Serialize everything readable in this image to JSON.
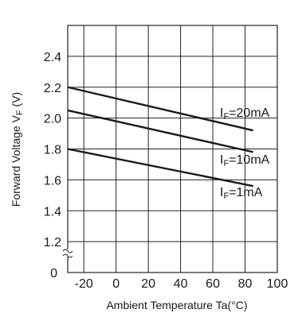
{
  "chart_data": {
    "type": "line",
    "title": "",
    "xlabel": "Ambient Temperature  Ta(°C)",
    "ylabel_main": "Forward Voltage  V",
    "ylabel_sub": "F",
    "ylabel_unit": " (V)",
    "xlim": [
      -30,
      100
    ],
    "ylim": [
      1.0,
      2.6
    ],
    "y_axis_broken": true,
    "grid": true,
    "x_ticks": [
      {
        "value": -20,
        "label": "-20"
      },
      {
        "value": 0,
        "label": "0"
      },
      {
        "value": 20,
        "label": "20"
      },
      {
        "value": 40,
        "label": "40"
      },
      {
        "value": 60,
        "label": "60"
      },
      {
        "value": 80,
        "label": "80"
      },
      {
        "value": 100,
        "label": "100"
      }
    ],
    "y_ticks": [
      {
        "value": 1.2,
        "label": "1.2"
      },
      {
        "value": 1.4,
        "label": "1.4"
      },
      {
        "value": 1.6,
        "label": "1.6"
      },
      {
        "value": 1.8,
        "label": "1.8"
      },
      {
        "value": 2.0,
        "label": "2.0"
      },
      {
        "value": 2.2,
        "label": "2.2"
      },
      {
        "value": 2.4,
        "label": "2.4"
      }
    ],
    "y_break_label": "0",
    "series": [
      {
        "name": "IF=20mA",
        "label_prefix": "I",
        "label_sub": "F",
        "label_rest": "=20mA",
        "x": [
          -30,
          85
        ],
        "y": [
          2.2,
          1.92
        ]
      },
      {
        "name": "IF=10mA",
        "label_prefix": "I",
        "label_sub": "F",
        "label_rest": "=10mA",
        "x": [
          -30,
          85
        ],
        "y": [
          2.05,
          1.78
        ]
      },
      {
        "name": "IF=1mA",
        "label_prefix": "I",
        "label_sub": "F",
        "label_rest": "=1mA",
        "x": [
          -30,
          85
        ],
        "y": [
          1.8,
          1.56
        ]
      }
    ]
  }
}
